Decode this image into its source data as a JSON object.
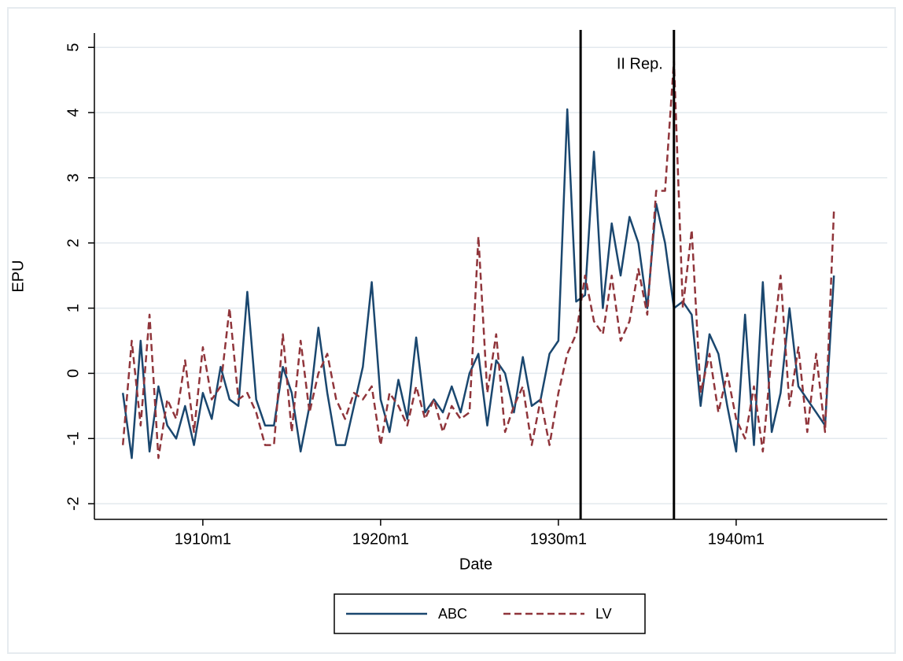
{
  "chart_data": {
    "type": "line",
    "xlabel": "Date",
    "ylabel": "EPU",
    "annotation": "II Rep.",
    "x": [
      1905.5,
      1906,
      1906.5,
      1907,
      1907.5,
      1908,
      1908.5,
      1909,
      1909.5,
      1910,
      1910.5,
      1911,
      1911.5,
      1912,
      1912.5,
      1913,
      1913.5,
      1914,
      1914.5,
      1915,
      1915.5,
      1916,
      1916.5,
      1917,
      1917.5,
      1918,
      1918.5,
      1919,
      1919.5,
      1920,
      1920.5,
      1921,
      1921.5,
      1922,
      1922.5,
      1923,
      1923.5,
      1924,
      1924.5,
      1925,
      1925.5,
      1926,
      1926.5,
      1927,
      1927.5,
      1928,
      1928.5,
      1929,
      1929.5,
      1930,
      1930.5,
      1931,
      1931.5,
      1932,
      1932.5,
      1933,
      1933.5,
      1934,
      1934.5,
      1935,
      1935.5,
      1936,
      1936.5,
      1937,
      1937.5,
      1938,
      1938.5,
      1939,
      1939.5,
      1940,
      1940.5,
      1941,
      1941.5,
      1942,
      1942.5,
      1943,
      1943.5,
      1944,
      1944.5,
      1945,
      1945.5
    ],
    "series": [
      {
        "name": "ABC",
        "color": "#1a476f",
        "dash": false,
        "values": [
          -0.3,
          -1.3,
          0.5,
          -1.2,
          -0.2,
          -0.8,
          -1.0,
          -0.5,
          -1.1,
          -0.3,
          -0.7,
          0.1,
          -0.4,
          -0.5,
          1.25,
          -0.4,
          -0.8,
          -0.8,
          0.1,
          -0.3,
          -1.2,
          -0.5,
          0.7,
          -0.3,
          -1.1,
          -1.1,
          -0.5,
          0.1,
          1.4,
          -0.4,
          -0.9,
          -0.1,
          -0.7,
          0.55,
          -0.6,
          -0.4,
          -0.6,
          -0.2,
          -0.6,
          0.0,
          0.3,
          -0.8,
          0.2,
          0.0,
          -0.6,
          0.25,
          -0.5,
          -0.4,
          0.3,
          0.5,
          4.05,
          1.1,
          1.2,
          3.4,
          1.0,
          2.3,
          1.5,
          2.4,
          2.0,
          1.0,
          2.6,
          2.0,
          1.0,
          1.1,
          0.9,
          -0.5,
          0.6,
          0.3,
          -0.5,
          -1.2,
          0.9,
          -1.1,
          1.4,
          -0.9,
          -0.3,
          1.0,
          -0.2,
          -0.4,
          -0.6,
          -0.8,
          1.5
        ]
      },
      {
        "name": "LV",
        "color": "#90353b",
        "dash": true,
        "values": [
          -1.1,
          0.5,
          -0.8,
          0.9,
          -1.3,
          -0.4,
          -0.7,
          0.2,
          -0.9,
          0.4,
          -0.4,
          -0.2,
          1.0,
          -0.4,
          -0.3,
          -0.6,
          -1.1,
          -1.1,
          0.6,
          -0.9,
          0.5,
          -0.6,
          0.0,
          0.3,
          -0.4,
          -0.7,
          -0.3,
          -0.4,
          -0.2,
          -1.1,
          -0.3,
          -0.5,
          -0.8,
          -0.2,
          -0.7,
          -0.4,
          -0.9,
          -0.5,
          -0.7,
          -0.6,
          2.1,
          -0.3,
          0.6,
          -0.9,
          -0.5,
          -0.2,
          -1.1,
          -0.4,
          -1.1,
          -0.3,
          0.3,
          0.6,
          1.5,
          0.8,
          0.6,
          1.5,
          0.5,
          0.8,
          1.6,
          0.9,
          2.8,
          2.8,
          4.8,
          1.0,
          2.2,
          -0.3,
          0.3,
          -0.6,
          0.0,
          -0.7,
          -1.0,
          -0.2,
          -1.2,
          0.3,
          1.5,
          -0.5,
          0.4,
          -0.9,
          0.3,
          -0.9,
          2.5
        ]
      }
    ],
    "vlines": [
      1931.25,
      1936.5
    ],
    "xlim": [
      1903.9,
      1948.5
    ],
    "xticks": [
      {
        "value": 1910,
        "label": "1910m1"
      },
      {
        "value": 1920,
        "label": "1920m1"
      },
      {
        "value": 1930,
        "label": "1930m1"
      },
      {
        "value": 1940,
        "label": "1940m1"
      }
    ],
    "ylim": [
      -2.24,
      5.22
    ],
    "yticks": [
      -2,
      -1,
      0,
      1,
      2,
      3,
      4,
      5
    ],
    "grid": true
  }
}
